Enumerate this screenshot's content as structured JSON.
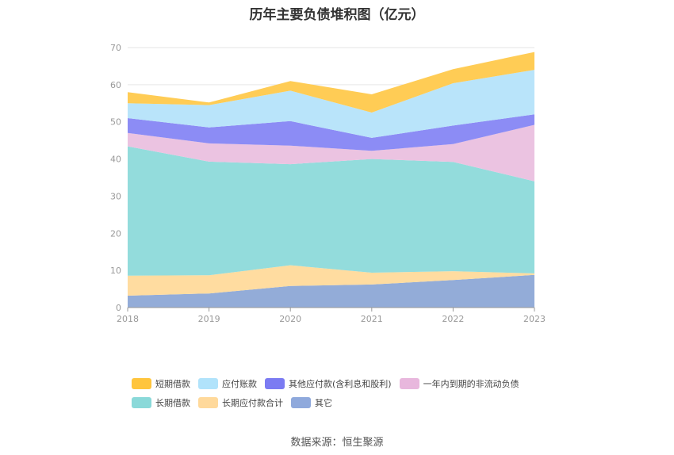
{
  "title": "历年主要负债堆积图（亿元）",
  "source": "数据来源：恒生聚源",
  "chart_data": {
    "type": "area",
    "stacked": true,
    "x": [
      "2018",
      "2019",
      "2020",
      "2021",
      "2022",
      "2023"
    ],
    "ylim": [
      0,
      70
    ],
    "yticks": [
      0,
      10,
      20,
      30,
      40,
      50,
      60,
      70
    ],
    "grid": true,
    "legend_position": "bottom",
    "series": [
      {
        "name": "其它",
        "color": "#93acd8",
        "values": [
          3.2,
          3.8,
          5.8,
          6.2,
          7.4,
          8.8
        ]
      },
      {
        "name": "长期应付款合计",
        "color": "#ffdca0",
        "values": [
          5.4,
          4.9,
          5.6,
          3.2,
          2.4,
          0.4
        ]
      },
      {
        "name": "长期借款",
        "color": "#93dcdc",
        "values": [
          34.8,
          30.6,
          27.2,
          30.6,
          29.4,
          24.8
        ]
      },
      {
        "name": "一年内到期的非流动负债",
        "color": "#ebc3e1",
        "values": [
          3.6,
          4.9,
          5.0,
          2.2,
          4.8,
          15.2
        ]
      },
      {
        "name": "其他应付款(含利息和股利)",
        "color": "#8c8cf5",
        "values": [
          4.0,
          4.3,
          6.6,
          3.5,
          5.0,
          2.8
        ]
      },
      {
        "name": "应付账款",
        "color": "#b9e4fa",
        "values": [
          4.0,
          6.0,
          8.2,
          6.8,
          11.4,
          12.0
        ]
      },
      {
        "name": "短期借款",
        "color": "#ffcc55",
        "values": [
          3.0,
          0.7,
          2.6,
          4.9,
          3.8,
          4.8
        ]
      }
    ]
  },
  "legend": {
    "rows": [
      [
        {
          "label": "短期借款",
          "color": "#ffc53d"
        },
        {
          "label": "应付账款",
          "color": "#b1e3fb"
        },
        {
          "label": "其他应付款(含利息和股利)",
          "color": "#7b7bf2"
        },
        {
          "label": "一年内到期的非流动负债",
          "color": "#e8b7dd"
        }
      ],
      [
        {
          "label": "长期借款",
          "color": "#8ad9d9"
        },
        {
          "label": "长期应付款合计",
          "color": "#ffd99b"
        },
        {
          "label": "其它",
          "color": "#8fa9dc"
        }
      ]
    ]
  }
}
